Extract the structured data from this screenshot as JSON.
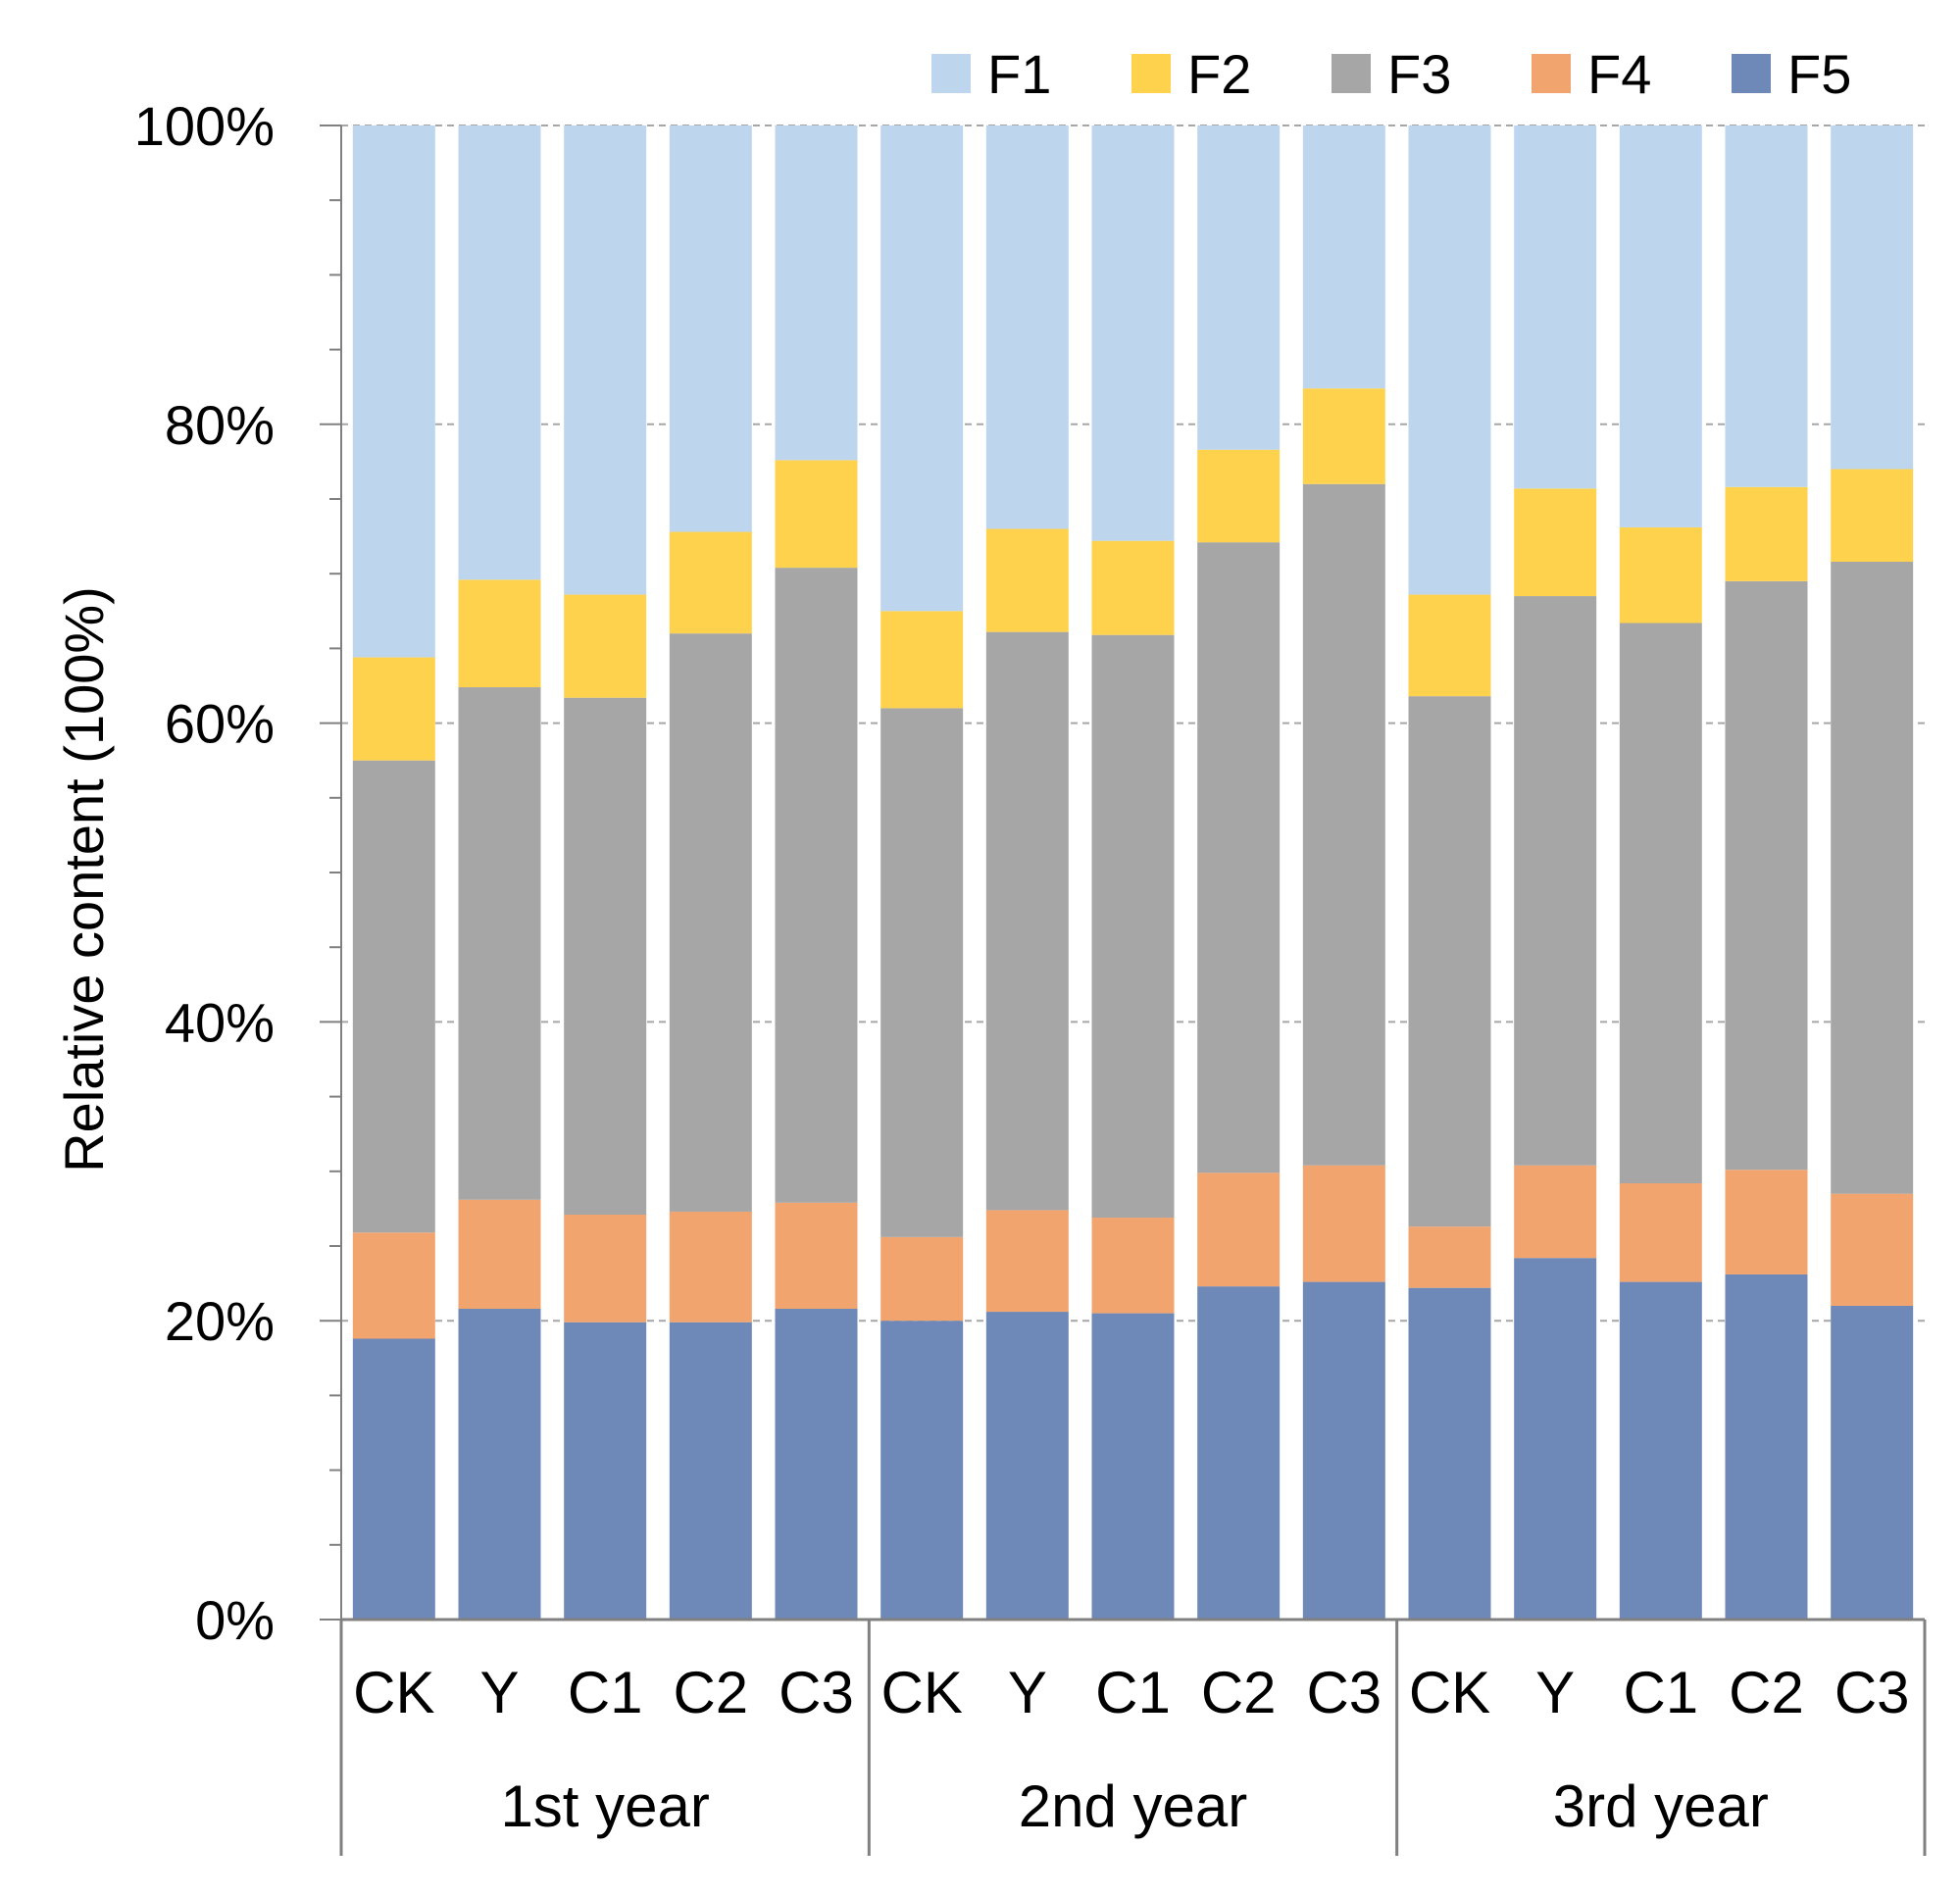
{
  "chart_data": {
    "type": "bar",
    "stacked": true,
    "ylabel": "Relative content (100%)",
    "ylim": [
      0,
      100
    ],
    "yticks": [
      0,
      20,
      40,
      60,
      80,
      100
    ],
    "ytick_labels": [
      "0%",
      "20%",
      "40%",
      "60%",
      "80%",
      "100%"
    ],
    "grid": true,
    "legend_position": "top",
    "categories": [
      "CK",
      "Y",
      "C1",
      "C2",
      "C3",
      "CK",
      "Y",
      "C1",
      "C2",
      "C3",
      "CK",
      "Y",
      "C1",
      "C2",
      "C3"
    ],
    "groups": [
      {
        "label": "1st year",
        "size": 5
      },
      {
        "label": "2nd year",
        "size": 5
      },
      {
        "label": "3rd year",
        "size": 5
      }
    ],
    "series": [
      {
        "name": "F5",
        "color": "#6e89b7",
        "values": [
          18.8,
          20.8,
          19.9,
          19.9,
          20.8,
          20.0,
          20.6,
          20.5,
          22.3,
          22.6,
          22.2,
          24.2,
          22.6,
          23.1,
          21.0
        ]
      },
      {
        "name": "F4",
        "color": "#f2a46e",
        "values": [
          7.1,
          7.3,
          7.2,
          7.4,
          7.1,
          5.6,
          6.8,
          6.4,
          7.6,
          7.8,
          4.1,
          6.2,
          6.6,
          7.0,
          7.5
        ]
      },
      {
        "name": "F3",
        "color": "#a6a6a6",
        "values": [
          31.6,
          34.3,
          34.6,
          38.7,
          42.5,
          35.4,
          38.7,
          39.0,
          42.2,
          45.6,
          35.5,
          38.1,
          37.5,
          39.4,
          42.3
        ]
      },
      {
        "name": "F2",
        "color": "#ffd24d",
        "values": [
          6.9,
          7.2,
          6.9,
          6.8,
          7.2,
          6.5,
          6.9,
          6.3,
          6.2,
          6.4,
          6.8,
          7.2,
          6.4,
          6.3,
          6.2
        ]
      },
      {
        "name": "F1",
        "color": "#bdd6ee",
        "values": [
          35.6,
          30.4,
          31.4,
          27.2,
          22.4,
          32.5,
          27.0,
          27.8,
          21.7,
          17.6,
          31.4,
          24.3,
          26.9,
          24.2,
          23.0
        ]
      }
    ]
  }
}
